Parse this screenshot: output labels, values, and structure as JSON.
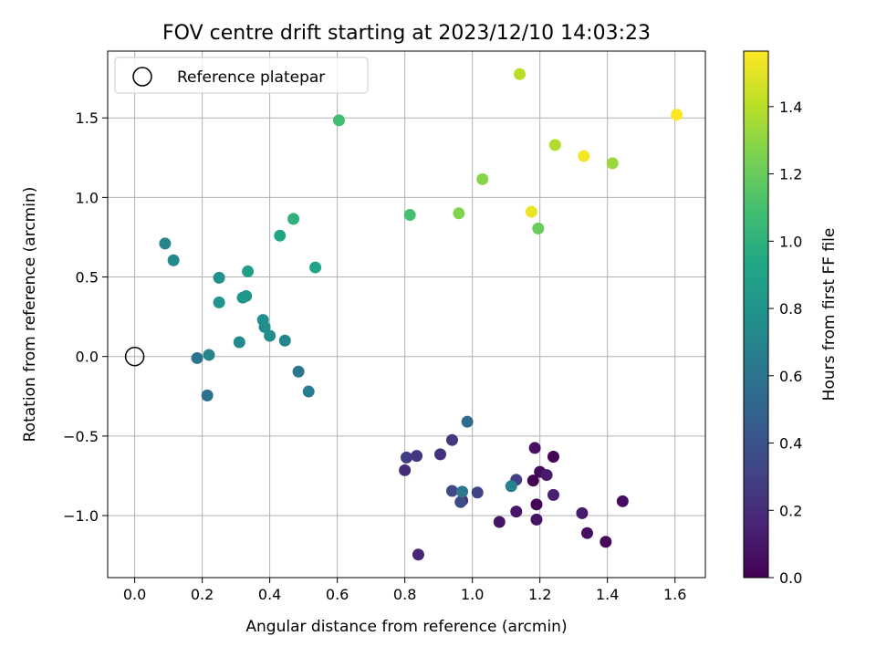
{
  "chart_data": {
    "type": "scatter",
    "title": "FOV centre drift starting at 2023/12/10 14:03:23",
    "xlabel": "Angular distance from reference (arcmin)",
    "ylabel": "Rotation from reference (arcmin)",
    "xlim": [
      -0.08,
      1.69
    ],
    "ylim": [
      -1.39,
      1.92
    ],
    "xticks": [
      0.0,
      0.2,
      0.4,
      0.6,
      0.8,
      1.0,
      1.2,
      1.4,
      1.6
    ],
    "xtick_labels": [
      "0.0",
      "0.2",
      "0.4",
      "0.6",
      "0.8",
      "1.0",
      "1.2",
      "1.4",
      "1.6"
    ],
    "yticks": [
      -1.0,
      -0.5,
      0.0,
      0.5,
      1.0,
      1.5
    ],
    "ytick_labels": [
      "−1.0",
      "−0.5",
      "0.0",
      "0.5",
      "1.0",
      "1.5"
    ],
    "grid": true,
    "legend": {
      "placement": "top-left",
      "entries": [
        {
          "label": "Reference platepar",
          "marker": "open-circle"
        }
      ]
    },
    "reference_point": {
      "x": 0.0,
      "y": 0.0
    },
    "colorbar": {
      "label": "Hours from first FF file",
      "colormap": "viridis",
      "range": [
        0.0,
        1.565
      ],
      "ticks": [
        0.0,
        0.2,
        0.4,
        0.6,
        0.8,
        1.0,
        1.2,
        1.4
      ],
      "tick_labels": [
        "0.0",
        "0.2",
        "0.4",
        "0.6",
        "0.8",
        "1.0",
        "1.2",
        "1.4"
      ]
    },
    "points": [
      {
        "x": 1.18,
        "y": -0.78,
        "c": 0.0
      },
      {
        "x": 1.24,
        "y": -0.63,
        "c": 0.01
      },
      {
        "x": 1.19,
        "y": -0.93,
        "c": 0.02
      },
      {
        "x": 1.395,
        "y": -1.165,
        "c": 0.03
      },
      {
        "x": 1.2,
        "y": -0.725,
        "c": 0.04
      },
      {
        "x": 1.445,
        "y": -0.91,
        "c": 0.05
      },
      {
        "x": 1.34,
        "y": -1.11,
        "c": 0.06
      },
      {
        "x": 1.185,
        "y": -0.575,
        "c": 0.07
      },
      {
        "x": 1.19,
        "y": -1.025,
        "c": 0.08
      },
      {
        "x": 1.08,
        "y": -1.04,
        "c": 0.09
      },
      {
        "x": 1.13,
        "y": -0.975,
        "c": 0.1
      },
      {
        "x": 1.22,
        "y": -0.745,
        "c": 0.11
      },
      {
        "x": 1.325,
        "y": -0.985,
        "c": 0.12
      },
      {
        "x": 1.24,
        "y": -0.87,
        "c": 0.14
      },
      {
        "x": 0.84,
        "y": -1.245,
        "c": 0.16
      },
      {
        "x": 0.97,
        "y": -0.905,
        "c": 0.18
      },
      {
        "x": 0.8,
        "y": -0.715,
        "c": 0.2
      },
      {
        "x": 0.905,
        "y": -0.615,
        "c": 0.22
      },
      {
        "x": 0.835,
        "y": -0.625,
        "c": 0.24
      },
      {
        "x": 0.94,
        "y": -0.525,
        "c": 0.26
      },
      {
        "x": 0.805,
        "y": -0.635,
        "c": 0.28
      },
      {
        "x": 1.13,
        "y": -0.775,
        "c": 0.3
      },
      {
        "x": 1.015,
        "y": -0.855,
        "c": 0.32
      },
      {
        "x": 0.94,
        "y": -0.845,
        "c": 0.34
      },
      {
        "x": 0.965,
        "y": -0.915,
        "c": 0.36
      },
      {
        "x": 0.985,
        "y": -0.41,
        "c": 0.55
      },
      {
        "x": 0.97,
        "y": -0.85,
        "c": 0.62
      },
      {
        "x": 1.115,
        "y": -0.815,
        "c": 0.68
      },
      {
        "x": 0.215,
        "y": -0.245,
        "c": 0.58
      },
      {
        "x": 0.185,
        "y": -0.01,
        "c": 0.6
      },
      {
        "x": 0.485,
        "y": -0.095,
        "c": 0.62
      },
      {
        "x": 0.515,
        "y": -0.22,
        "c": 0.66
      },
      {
        "x": 0.22,
        "y": 0.01,
        "c": 0.7
      },
      {
        "x": 0.445,
        "y": 0.1,
        "c": 0.72
      },
      {
        "x": 0.31,
        "y": 0.09,
        "c": 0.74
      },
      {
        "x": 0.4,
        "y": 0.13,
        "c": 0.75
      },
      {
        "x": 0.385,
        "y": 0.185,
        "c": 0.76
      },
      {
        "x": 0.38,
        "y": 0.23,
        "c": 0.77
      },
      {
        "x": 0.09,
        "y": 0.71,
        "c": 0.7
      },
      {
        "x": 0.115,
        "y": 0.605,
        "c": 0.73
      },
      {
        "x": 0.25,
        "y": 0.495,
        "c": 0.78
      },
      {
        "x": 0.25,
        "y": 0.34,
        "c": 0.8
      },
      {
        "x": 0.32,
        "y": 0.37,
        "c": 0.81
      },
      {
        "x": 0.33,
        "y": 0.38,
        "c": 0.82
      },
      {
        "x": 0.335,
        "y": 0.535,
        "c": 0.88
      },
      {
        "x": 0.535,
        "y": 0.56,
        "c": 0.9
      },
      {
        "x": 0.43,
        "y": 0.76,
        "c": 0.92
      },
      {
        "x": 0.47,
        "y": 0.865,
        "c": 1.0
      },
      {
        "x": 0.605,
        "y": 1.485,
        "c": 1.08
      },
      {
        "x": 0.815,
        "y": 0.89,
        "c": 1.1
      },
      {
        "x": 1.195,
        "y": 0.805,
        "c": 1.2
      },
      {
        "x": 0.96,
        "y": 0.9,
        "c": 1.27
      },
      {
        "x": 1.03,
        "y": 1.115,
        "c": 1.28
      },
      {
        "x": 1.415,
        "y": 1.215,
        "c": 1.33
      },
      {
        "x": 1.245,
        "y": 1.33,
        "c": 1.38
      },
      {
        "x": 1.14,
        "y": 1.775,
        "c": 1.4
      },
      {
        "x": 1.175,
        "y": 0.91,
        "c": 1.52
      },
      {
        "x": 1.33,
        "y": 1.26,
        "c": 1.55
      },
      {
        "x": 1.605,
        "y": 1.52,
        "c": 1.565
      }
    ]
  }
}
